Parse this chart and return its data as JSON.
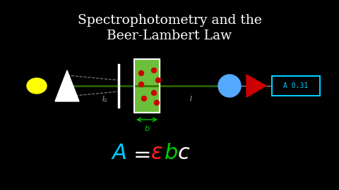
{
  "title_line1": "Spectrophotometry and the",
  "title_line2": "Beer-Lambert Law",
  "title_color": "#ffffff",
  "bg_color": "#000000",
  "formula_A_color": "#00ccff",
  "formula_equals_color": "#ffffff",
  "formula_epsilon_color": "#ff2222",
  "formula_b_color": "#00cc00",
  "formula_c_color": "#ffffff",
  "sun_color": "#ffff00",
  "prism_color": "#ffffff",
  "beam_color": "#2a6e00",
  "dashed_color": "#888888",
  "slit_color": "#ffffff",
  "cuvette_bg": "#6cbf3a",
  "cuvette_border": "#ffffff",
  "dot_color": "#cc0000",
  "detector_circle_color": "#55aaff",
  "arrow_color": "#cc0000",
  "readout_border": "#00ccff",
  "readout_text": "A 0.31",
  "readout_text_color": "#00ccff",
  "label_I0_color": "#aaaaaa",
  "label_I_color": "#aaaaaa",
  "label_b_color": "#00cc00"
}
